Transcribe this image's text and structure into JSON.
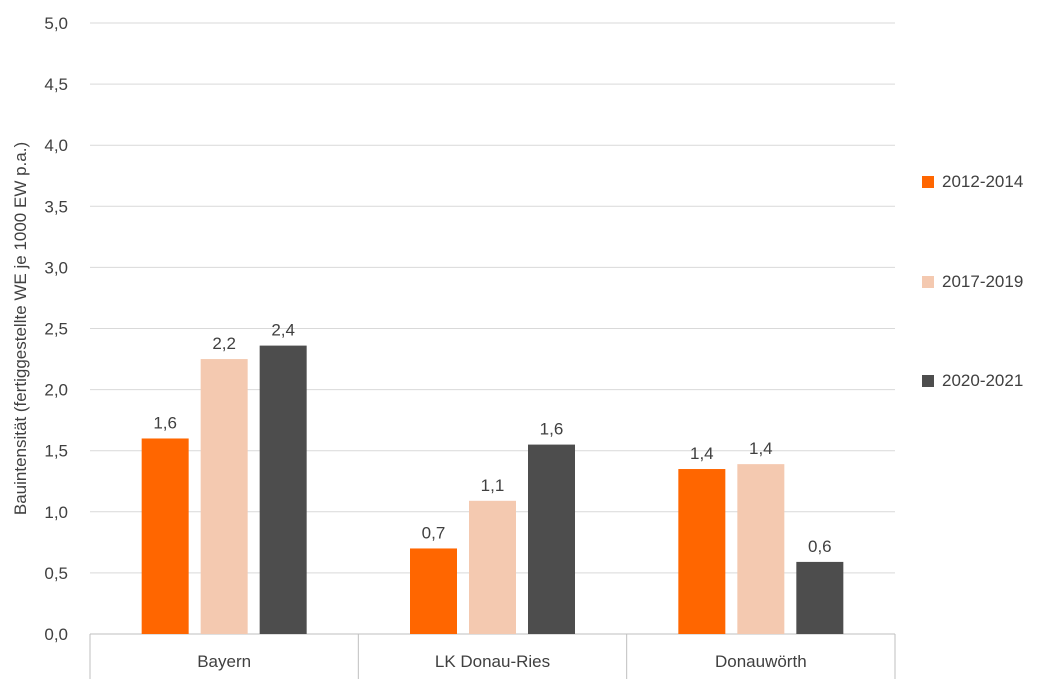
{
  "chart_data": {
    "type": "bar",
    "categories": [
      "Bayern",
      "LK Donau-Ries",
      "Donauwörth"
    ],
    "series": [
      {
        "name": "2012-2014",
        "values": [
          1.6,
          0.7,
          1.35
        ],
        "labels": [
          "1,6",
          "0,7",
          "1,4"
        ],
        "color": "#ff6600"
      },
      {
        "name": "2017-2019",
        "values": [
          2.25,
          1.09,
          1.39
        ],
        "labels": [
          "2,2",
          "1,1",
          "1,4"
        ],
        "color": "#f4c9b0"
      },
      {
        "name": "2020-2021",
        "values": [
          2.36,
          1.55,
          0.59
        ],
        "labels": [
          "2,4",
          "1,6",
          "0,6"
        ],
        "color": "#4d4d4d"
      }
    ],
    "ylabel": "Bauintensität (fertiggestellte WE je 1000 EW p.a.)",
    "xlabel": "",
    "ylim": [
      0,
      5
    ],
    "yticks": [
      "0,0",
      "0,5",
      "1,0",
      "1,5",
      "2,0",
      "2,5",
      "3,0",
      "3,5",
      "4,0",
      "4,5",
      "5,0"
    ],
    "grid": true,
    "legend_position": "right"
  }
}
